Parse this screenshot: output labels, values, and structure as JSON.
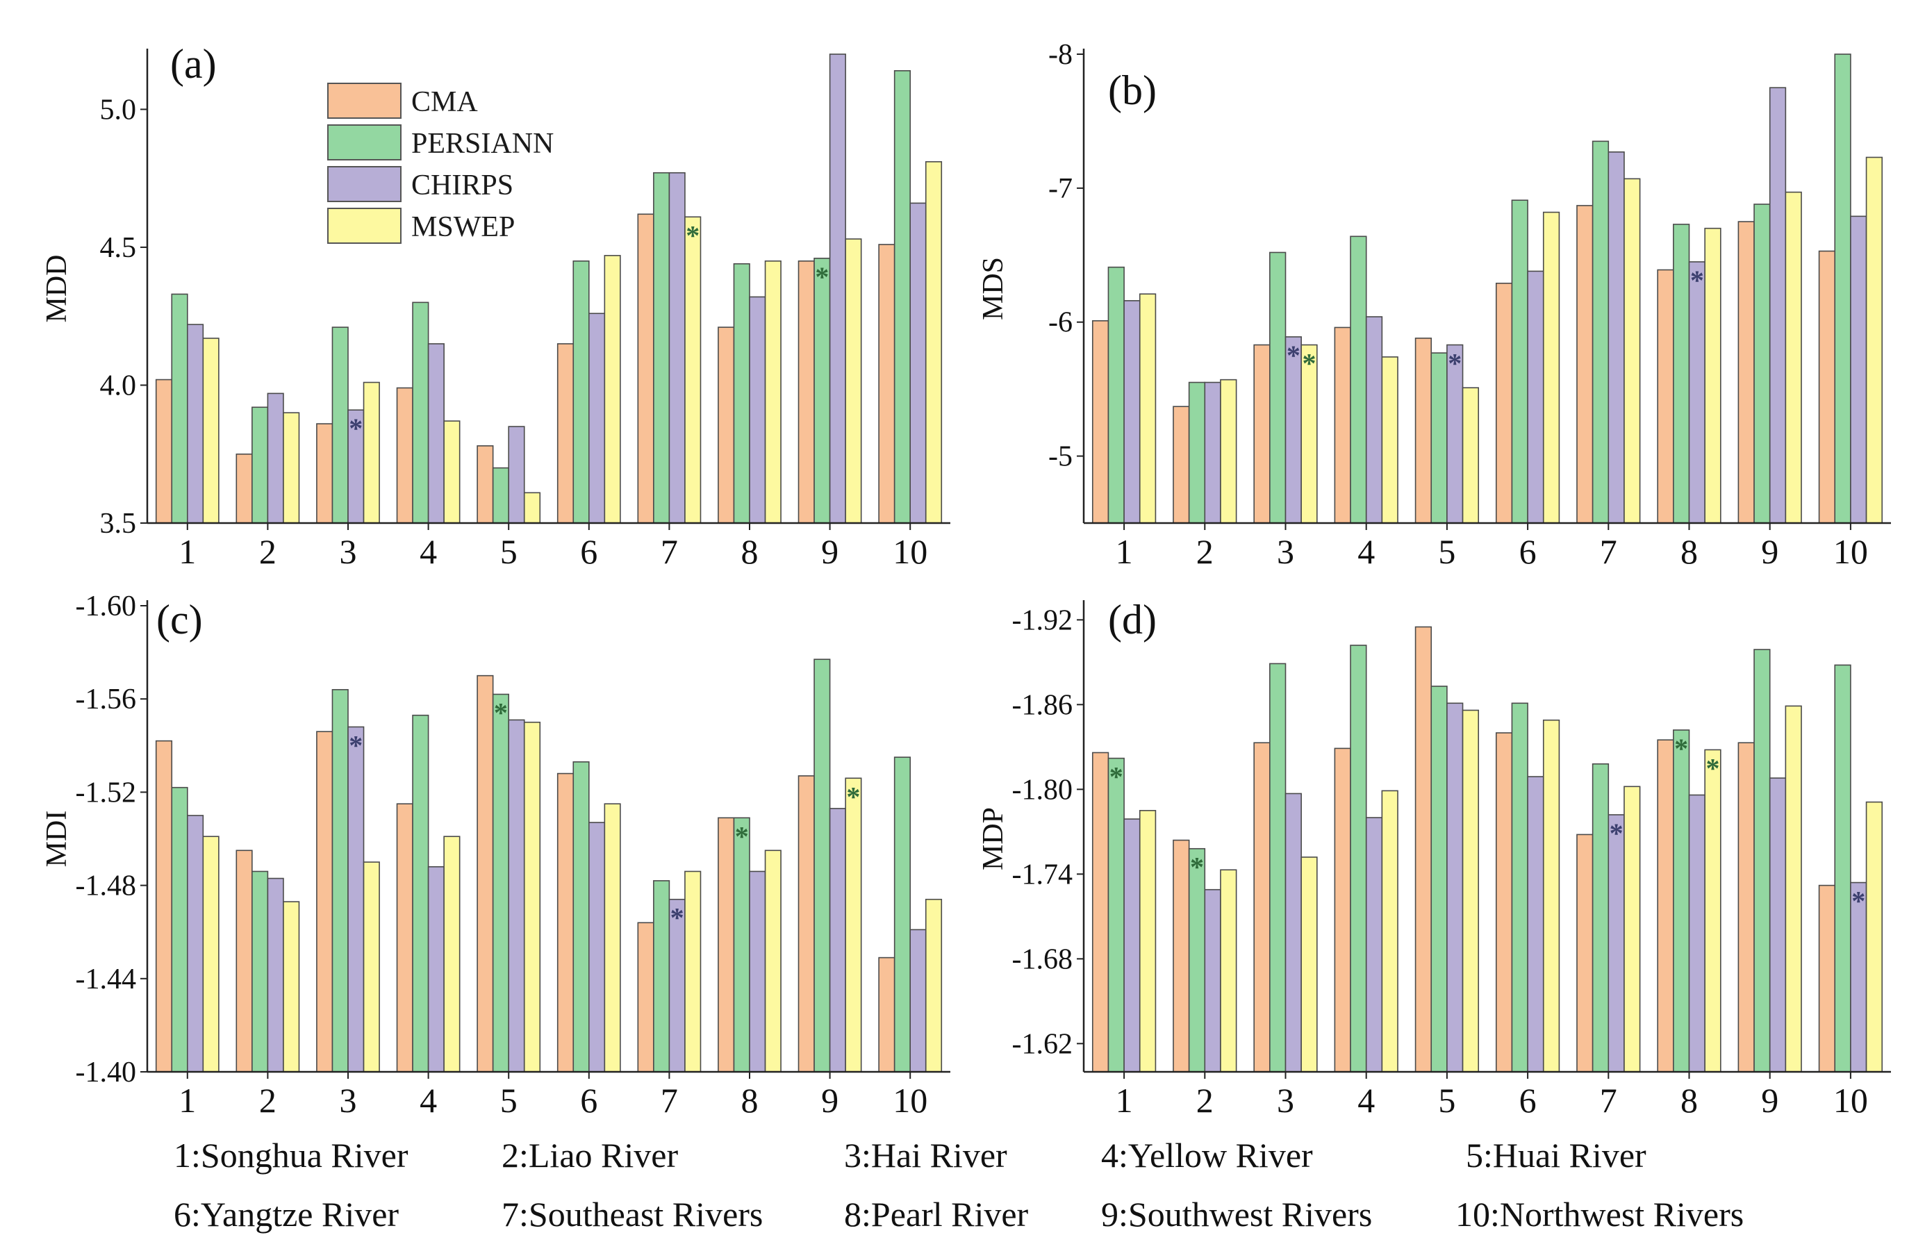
{
  "colors": {
    "CMA": "#f9c197",
    "PERSIANN": "#93d7a1",
    "CHIRPS": "#b7aed6",
    "MSWEP": "#fdf9a0",
    "axis": "#222222",
    "star_dark": "#3b3f6e",
    "star_green": "#2f6b3a"
  },
  "series_names": [
    "CMA",
    "PERSIANN",
    "CHIRPS",
    "MSWEP"
  ],
  "chart_data": [
    {
      "type": "bar",
      "panel": "(a)",
      "ylabel": "MDD",
      "categories": [
        "1",
        "2",
        "3",
        "4",
        "5",
        "6",
        "7",
        "8",
        "9",
        "10"
      ],
      "ylim": [
        3.5,
        5.2
      ],
      "inverted": false,
      "ytick_values": [
        3.5,
        4.0,
        4.5,
        5.0
      ],
      "ytick_labels": [
        "3.5",
        "4.0",
        "4.5",
        "5.0"
      ],
      "series": [
        {
          "name": "CMA",
          "values": [
            4.02,
            3.75,
            3.86,
            3.99,
            3.78,
            4.15,
            4.62,
            4.21,
            4.45,
            4.51
          ]
        },
        {
          "name": "PERSIANN",
          "values": [
            4.33,
            3.92,
            4.21,
            4.3,
            3.7,
            4.45,
            4.77,
            4.44,
            4.46,
            5.14
          ]
        },
        {
          "name": "CHIRPS",
          "values": [
            4.22,
            3.97,
            3.91,
            4.15,
            3.85,
            4.26,
            4.77,
            4.32,
            5.2,
            4.66
          ]
        },
        {
          "name": "MSWEP",
          "values": [
            4.17,
            3.9,
            4.01,
            3.87,
            3.61,
            4.47,
            4.61,
            4.45,
            4.53,
            4.81
          ]
        }
      ],
      "significance": [
        {
          "category": "3",
          "series": "CHIRPS"
        },
        {
          "category": "7",
          "series": "MSWEP"
        },
        {
          "category": "9",
          "series": "PERSIANN"
        }
      ],
      "legend": {
        "position": "top-left",
        "entries": [
          "CMA",
          "PERSIANN",
          "CHIRPS",
          "MSWEP"
        ]
      }
    },
    {
      "type": "bar",
      "panel": "(b)",
      "ylabel": "MDS",
      "categories": [
        "1",
        "2",
        "3",
        "4",
        "5",
        "6",
        "7",
        "8",
        "9",
        "10"
      ],
      "ylim": [
        -4.5,
        -8.0
      ],
      "inverted": true,
      "ytick_values": [
        -5,
        -6,
        -7,
        -8
      ],
      "ytick_labels": [
        "-5",
        "-6",
        "-7",
        "-8"
      ],
      "series": [
        {
          "name": "CMA",
          "values": [
            -6.01,
            -5.37,
            -5.83,
            -5.96,
            -5.88,
            -6.29,
            -6.87,
            -6.39,
            -6.75,
            -6.53
          ]
        },
        {
          "name": "PERSIANN",
          "values": [
            -6.41,
            -5.55,
            -6.52,
            -6.64,
            -5.77,
            -6.91,
            -7.35,
            -6.73,
            -6.88,
            -8.05
          ]
        },
        {
          "name": "CHIRPS",
          "values": [
            -6.16,
            -5.55,
            -5.89,
            -6.04,
            -5.83,
            -6.38,
            -7.27,
            -6.45,
            -7.75,
            -6.79
          ]
        },
        {
          "name": "MSWEP",
          "values": [
            -6.21,
            -5.57,
            -5.83,
            -5.74,
            -5.51,
            -6.82,
            -7.07,
            -6.7,
            -6.97,
            -7.23
          ]
        }
      ],
      "significance": [
        {
          "category": "3",
          "series": "CHIRPS"
        },
        {
          "category": "3",
          "series": "MSWEP"
        },
        {
          "category": "5",
          "series": "CHIRPS"
        },
        {
          "category": "8",
          "series": "CHIRPS"
        }
      ]
    },
    {
      "type": "bar",
      "panel": "(c)",
      "ylabel": "MDI",
      "categories": [
        "1",
        "2",
        "3",
        "4",
        "5",
        "6",
        "7",
        "8",
        "9",
        "10"
      ],
      "ylim": [
        -1.4,
        -1.6
      ],
      "inverted": true,
      "ytick_values": [
        -1.4,
        -1.44,
        -1.48,
        -1.52,
        -1.56,
        -1.6
      ],
      "ytick_labels": [
        "-1.40",
        "-1.44",
        "-1.48",
        "-1.52",
        "-1.56",
        "-1.60"
      ],
      "series": [
        {
          "name": "CMA",
          "values": [
            -1.542,
            -1.495,
            -1.546,
            -1.515,
            -1.57,
            -1.528,
            -1.464,
            -1.509,
            -1.527,
            -1.449
          ]
        },
        {
          "name": "PERSIANN",
          "values": [
            -1.522,
            -1.486,
            -1.564,
            -1.553,
            -1.562,
            -1.533,
            -1.482,
            -1.509,
            -1.577,
            -1.535
          ]
        },
        {
          "name": "CHIRPS",
          "values": [
            -1.51,
            -1.483,
            -1.548,
            -1.488,
            -1.551,
            -1.507,
            -1.474,
            -1.486,
            -1.513,
            -1.461
          ]
        },
        {
          "name": "MSWEP",
          "values": [
            -1.501,
            -1.473,
            -1.49,
            -1.501,
            -1.55,
            -1.515,
            -1.486,
            -1.495,
            -1.526,
            -1.474
          ]
        }
      ],
      "significance": [
        {
          "category": "3",
          "series": "CHIRPS"
        },
        {
          "category": "5",
          "series": "PERSIANN"
        },
        {
          "category": "7",
          "series": "CHIRPS"
        },
        {
          "category": "8",
          "series": "PERSIANN"
        },
        {
          "category": "9",
          "series": "MSWEP"
        }
      ]
    },
    {
      "type": "bar",
      "panel": "(d)",
      "ylabel": "MDP",
      "categories": [
        "1",
        "2",
        "3",
        "4",
        "5",
        "6",
        "7",
        "8",
        "9",
        "10"
      ],
      "ylim": [
        -1.6,
        -1.93
      ],
      "inverted": true,
      "ytick_values": [
        -1.62,
        -1.68,
        -1.74,
        -1.8,
        -1.86,
        -1.92
      ],
      "ytick_labels": [
        "-1.62",
        "-1.68",
        "-1.74",
        "-1.80",
        "-1.86",
        "-1.92"
      ],
      "series": [
        {
          "name": "CMA",
          "values": [
            -1.826,
            -1.764,
            -1.833,
            -1.829,
            -1.915,
            -1.84,
            -1.768,
            -1.835,
            -1.833,
            -1.732
          ]
        },
        {
          "name": "PERSIANN",
          "values": [
            -1.822,
            -1.758,
            -1.889,
            -1.902,
            -1.873,
            -1.861,
            -1.818,
            -1.842,
            -1.899,
            -1.888
          ]
        },
        {
          "name": "CHIRPS",
          "values": [
            -1.779,
            -1.729,
            -1.797,
            -1.78,
            -1.861,
            -1.809,
            -1.782,
            -1.796,
            -1.808,
            -1.734
          ]
        },
        {
          "name": "MSWEP",
          "values": [
            -1.785,
            -1.743,
            -1.752,
            -1.799,
            -1.856,
            -1.849,
            -1.802,
            -1.828,
            -1.859,
            -1.791
          ]
        }
      ],
      "significance": [
        {
          "category": "1",
          "series": "PERSIANN"
        },
        {
          "category": "2",
          "series": "PERSIANN"
        },
        {
          "category": "7",
          "series": "CHIRPS"
        },
        {
          "category": "8",
          "series": "PERSIANN"
        },
        {
          "category": "8",
          "series": "MSWEP"
        },
        {
          "category": "10",
          "series": "CHIRPS"
        }
      ]
    }
  ],
  "star_symbol": "*",
  "basins": [
    "1:Songhua River",
    "2:Liao River",
    "3:Hai River",
    "4:Yellow River",
    "5:Huai River",
    "6:Yangtze River",
    "7:Southeast Rivers",
    "8:Pearl River",
    "9:Southwest Rivers",
    "10:Northwest Rivers"
  ]
}
